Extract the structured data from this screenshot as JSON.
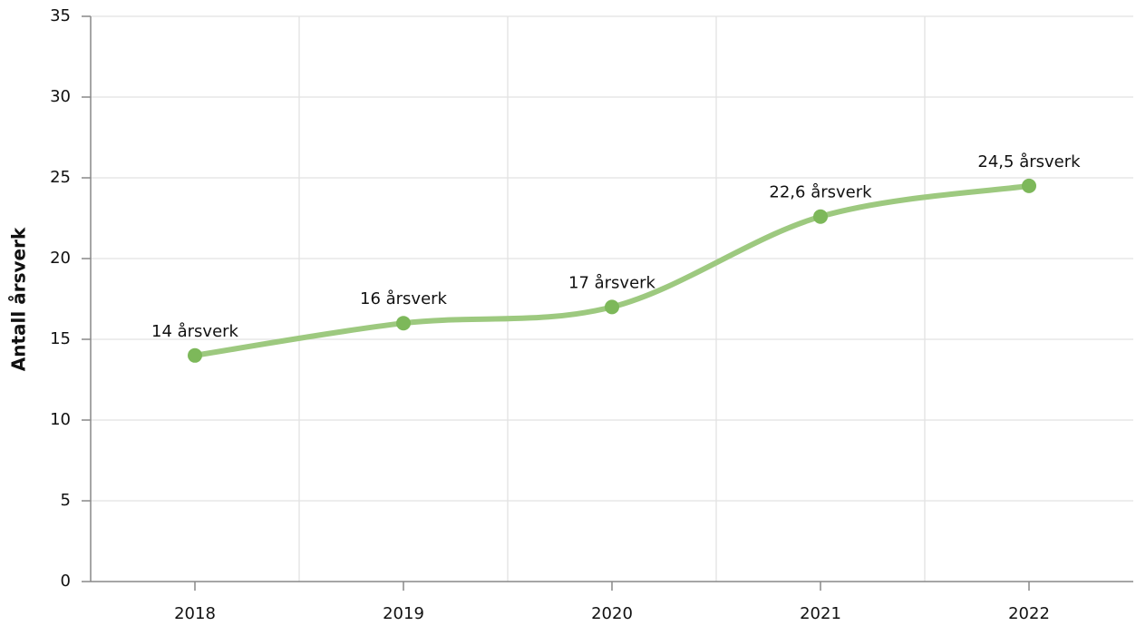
{
  "chart_data": {
    "type": "line",
    "y_label": "Antall årsverk",
    "categories": [
      "2018",
      "2019",
      "2020",
      "2021",
      "2022"
    ],
    "values": [
      14,
      16,
      17,
      22.6,
      24.5
    ],
    "value_labels": [
      "14 årsverk",
      "16 årsverk",
      "17 årsverk",
      "22,6 årsverk",
      "24,5 årsverk"
    ],
    "line_color": "#9dc97f",
    "marker_color": "#7db85a",
    "smooth": true,
    "ylim": [
      0,
      35
    ],
    "yticks": [
      0,
      5,
      10,
      15,
      20,
      25,
      30,
      35
    ],
    "grid": true
  }
}
